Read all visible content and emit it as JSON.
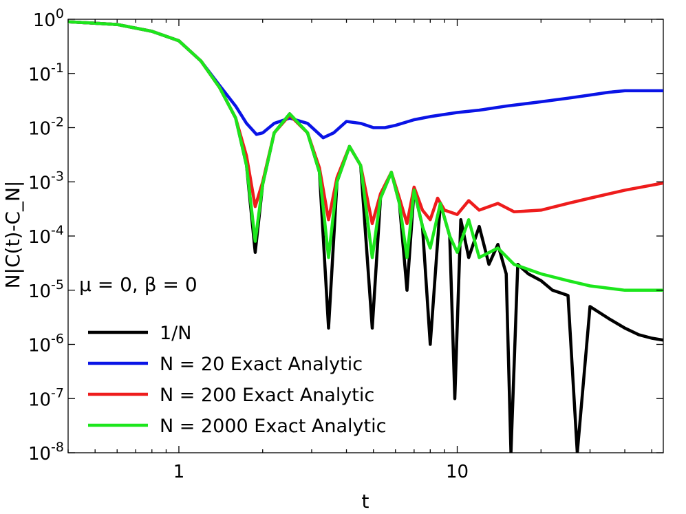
{
  "chart_data": {
    "type": "line",
    "title": "",
    "xlabel": "t",
    "ylabel": "N|C(t)-C_N|",
    "x_scale": "log",
    "y_scale": "log",
    "xlim": [
      0.4,
      55
    ],
    "ylim": [
      1e-08,
      1
    ],
    "x_ticks": [
      1,
      10
    ],
    "x_tick_labels": [
      "1",
      "10"
    ],
    "y_ticks": [
      1,
      0.1,
      0.01,
      0.001,
      0.0001,
      1e-05,
      1e-06,
      1e-07,
      1e-08
    ],
    "y_tick_labels": [
      {
        "base": "10",
        "exp": "0"
      },
      {
        "base": "10",
        "exp": "-1"
      },
      {
        "base": "10",
        "exp": "-2"
      },
      {
        "base": "10",
        "exp": "-3"
      },
      {
        "base": "10",
        "exp": "-4"
      },
      {
        "base": "10",
        "exp": "-5"
      },
      {
        "base": "10",
        "exp": "-6"
      },
      {
        "base": "10",
        "exp": "-7"
      },
      {
        "base": "10",
        "exp": "-8"
      }
    ],
    "annotation": "μ = 0, β = 0",
    "legend_position": "bottom-left",
    "series": [
      {
        "name": "1/N",
        "color": "#000000",
        "x": [
          0.4,
          0.6,
          0.8,
          1.0,
          1.2,
          1.4,
          1.6,
          1.75,
          1.88,
          2.0,
          2.2,
          2.5,
          2.9,
          3.2,
          3.45,
          3.7,
          4.1,
          4.5,
          4.95,
          5.3,
          5.8,
          6.2,
          6.6,
          7.0,
          7.5,
          8.0,
          8.7,
          9.4,
          9.8,
          10.3,
          11.0,
          12.0,
          13.0,
          14.0,
          15.0,
          15.6,
          16.5,
          18.0,
          20.0,
          22.0,
          25.0,
          27.0,
          30.0,
          35.0,
          40.0,
          45.0,
          50.0,
          55.0
        ],
        "y": [
          0.9,
          0.8,
          0.6,
          0.4,
          0.17,
          0.055,
          0.015,
          0.002,
          5e-05,
          0.0009,
          0.008,
          0.018,
          0.008,
          0.0015,
          2e-06,
          0.001,
          0.0045,
          0.002,
          2e-06,
          0.0005,
          0.0015,
          0.0004,
          1e-05,
          0.0007,
          0.00015,
          1e-06,
          0.0004,
          0.0001,
          1e-07,
          0.0002,
          4e-05,
          0.00015,
          3e-05,
          7e-05,
          2e-05,
          1e-08,
          3e-05,
          2e-05,
          1.5e-05,
          1e-05,
          8e-06,
          1e-08,
          5e-06,
          3e-06,
          2e-06,
          1.5e-06,
          1.3e-06,
          1.2e-06
        ]
      },
      {
        "name": "N = 20 Exact Analytic",
        "color": "#0a14e6",
        "x": [
          0.4,
          0.6,
          0.8,
          1.0,
          1.2,
          1.4,
          1.6,
          1.75,
          1.9,
          2.0,
          2.2,
          2.5,
          2.9,
          3.3,
          3.6,
          4.0,
          4.5,
          5.0,
          5.5,
          6.0,
          7.0,
          8.0,
          10.0,
          12.0,
          15.0,
          20.0,
          25.0,
          30.0,
          35.0,
          40.0,
          55.0
        ],
        "y": [
          0.9,
          0.8,
          0.6,
          0.4,
          0.17,
          0.06,
          0.025,
          0.012,
          0.0075,
          0.008,
          0.012,
          0.015,
          0.012,
          0.0065,
          0.008,
          0.013,
          0.012,
          0.01,
          0.01,
          0.011,
          0.014,
          0.016,
          0.019,
          0.021,
          0.025,
          0.03,
          0.035,
          0.04,
          0.045,
          0.048,
          0.048
        ]
      },
      {
        "name": "N = 200 Exact Analytic",
        "color": "#ee1c1c",
        "x": [
          0.4,
          0.6,
          0.8,
          1.0,
          1.2,
          1.4,
          1.6,
          1.75,
          1.88,
          2.0,
          2.2,
          2.5,
          2.9,
          3.2,
          3.45,
          3.7,
          4.1,
          4.5,
          4.95,
          5.3,
          5.8,
          6.2,
          6.6,
          7.0,
          7.5,
          8.0,
          8.5,
          9.0,
          10.0,
          11.0,
          12.0,
          14.0,
          16.0,
          20.0,
          25.0,
          30.0,
          40.0,
          55.0
        ],
        "y": [
          0.9,
          0.8,
          0.6,
          0.4,
          0.17,
          0.055,
          0.015,
          0.003,
          0.00035,
          0.001,
          0.008,
          0.017,
          0.008,
          0.0018,
          0.0002,
          0.0012,
          0.0045,
          0.002,
          0.00017,
          0.0006,
          0.0015,
          0.0005,
          0.00017,
          0.0008,
          0.0003,
          0.0002,
          0.0005,
          0.0003,
          0.00025,
          0.00045,
          0.0003,
          0.0004,
          0.00028,
          0.0003,
          0.0004,
          0.0005,
          0.0007,
          0.00095
        ]
      },
      {
        "name": "N = 2000 Exact Analytic",
        "color": "#1ce61c",
        "x": [
          0.4,
          0.6,
          0.8,
          1.0,
          1.2,
          1.4,
          1.6,
          1.75,
          1.88,
          2.0,
          2.2,
          2.5,
          2.9,
          3.2,
          3.45,
          3.7,
          4.1,
          4.5,
          4.95,
          5.3,
          5.8,
          6.2,
          6.6,
          7.0,
          7.5,
          8.0,
          8.7,
          9.4,
          10.0,
          11.0,
          12.0,
          14.0,
          16.0,
          20.0,
          25.0,
          30.0,
          40.0,
          55.0
        ],
        "y": [
          0.9,
          0.8,
          0.6,
          0.4,
          0.17,
          0.055,
          0.015,
          0.002,
          8e-05,
          0.0009,
          0.008,
          0.018,
          0.008,
          0.0015,
          4e-05,
          0.001,
          0.0045,
          0.002,
          4e-05,
          0.0005,
          0.0015,
          0.0004,
          4e-05,
          0.0007,
          0.00015,
          6e-05,
          0.0004,
          0.0001,
          5e-05,
          0.0002,
          4e-05,
          6e-05,
          3e-05,
          2e-05,
          1.5e-05,
          1.2e-05,
          1e-05,
          1e-05
        ]
      }
    ]
  }
}
